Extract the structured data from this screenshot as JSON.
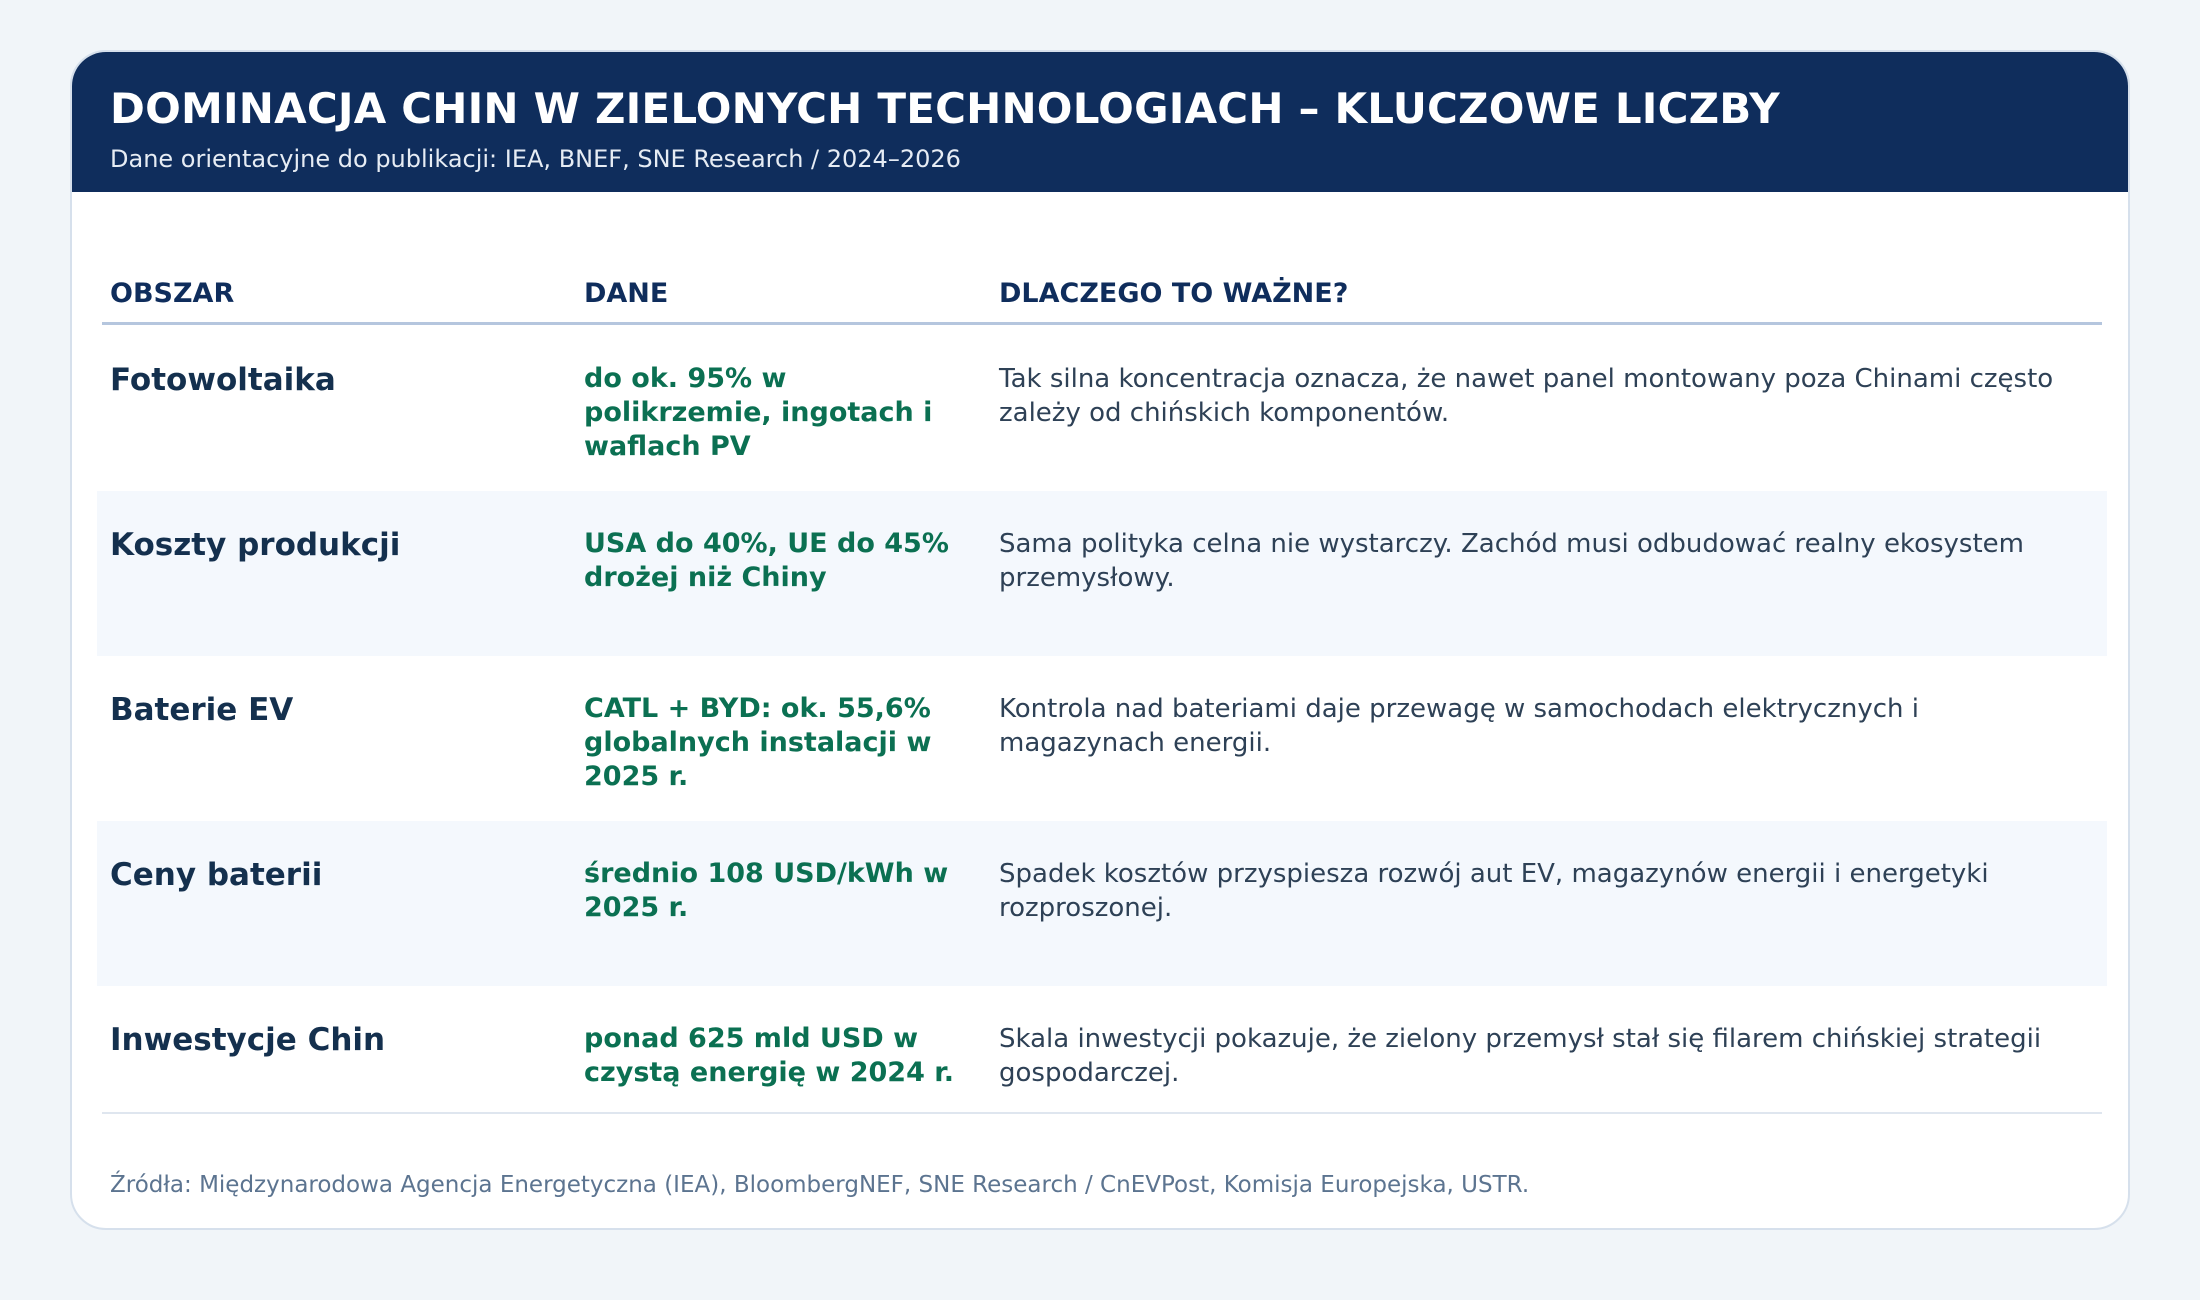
{
  "header": {
    "title": "DOMINACJA CHIN W ZIELONYCH TECHNOLOGIACH – KLUCZOWE LICZBY",
    "subtitle": "Dane orientacyjne do publikacji: IEA, BNEF, SNE Research / 2024–2026"
  },
  "table": {
    "columns": [
      "OBSZAR",
      "DANE",
      "DLACZEGO TO WAŻNE?"
    ],
    "rows": [
      {
        "area": "Fotowoltaika",
        "value": "do ok. 95% w polikrzemie, ingotach i waflach PV",
        "why": "Tak silna koncentracja oznacza, że nawet panel montowany poza Chinami często zależy od chińskich komponentów."
      },
      {
        "area": "Koszty produkcji",
        "value": "USA do 40%, UE do 45% drożej niż Chiny",
        "why": "Sama polityka celna nie wystarczy. Zachód musi odbudować realny ekosystem przemysłowy."
      },
      {
        "area": "Baterie EV",
        "value": "CATL + BYD: ok. 55,6% globalnych instalacji w 2025 r.",
        "why": "Kontrola nad bateriami daje przewagę w samochodach elektrycznych i magazynach energii."
      },
      {
        "area": "Ceny baterii",
        "value": "średnio 108 USD/kWh w 2025 r.",
        "why": "Spadek kosztów przyspiesza rozwój aut EV, magazynów energii i energetyki rozproszonej."
      },
      {
        "area": "Inwestycje Chin",
        "value": "ponad 625 mld USD w czystą energię w 2024 r.",
        "why": "Skala inwestycji pokazuje, że zielony przemysł stał się filarem chińskiej strategii gospodarczej."
      }
    ]
  },
  "footer": {
    "sources": "Źródła: Międzynarodowa Agencja Energetyczna (IEA), BloombergNEF, SNE Research / CnEVPost, Komisja Europejska, USTR."
  },
  "colors": {
    "header_bg": "#0f2d5c",
    "value_text": "#0b7052",
    "alt_row_bg": "#f4f8fd"
  }
}
